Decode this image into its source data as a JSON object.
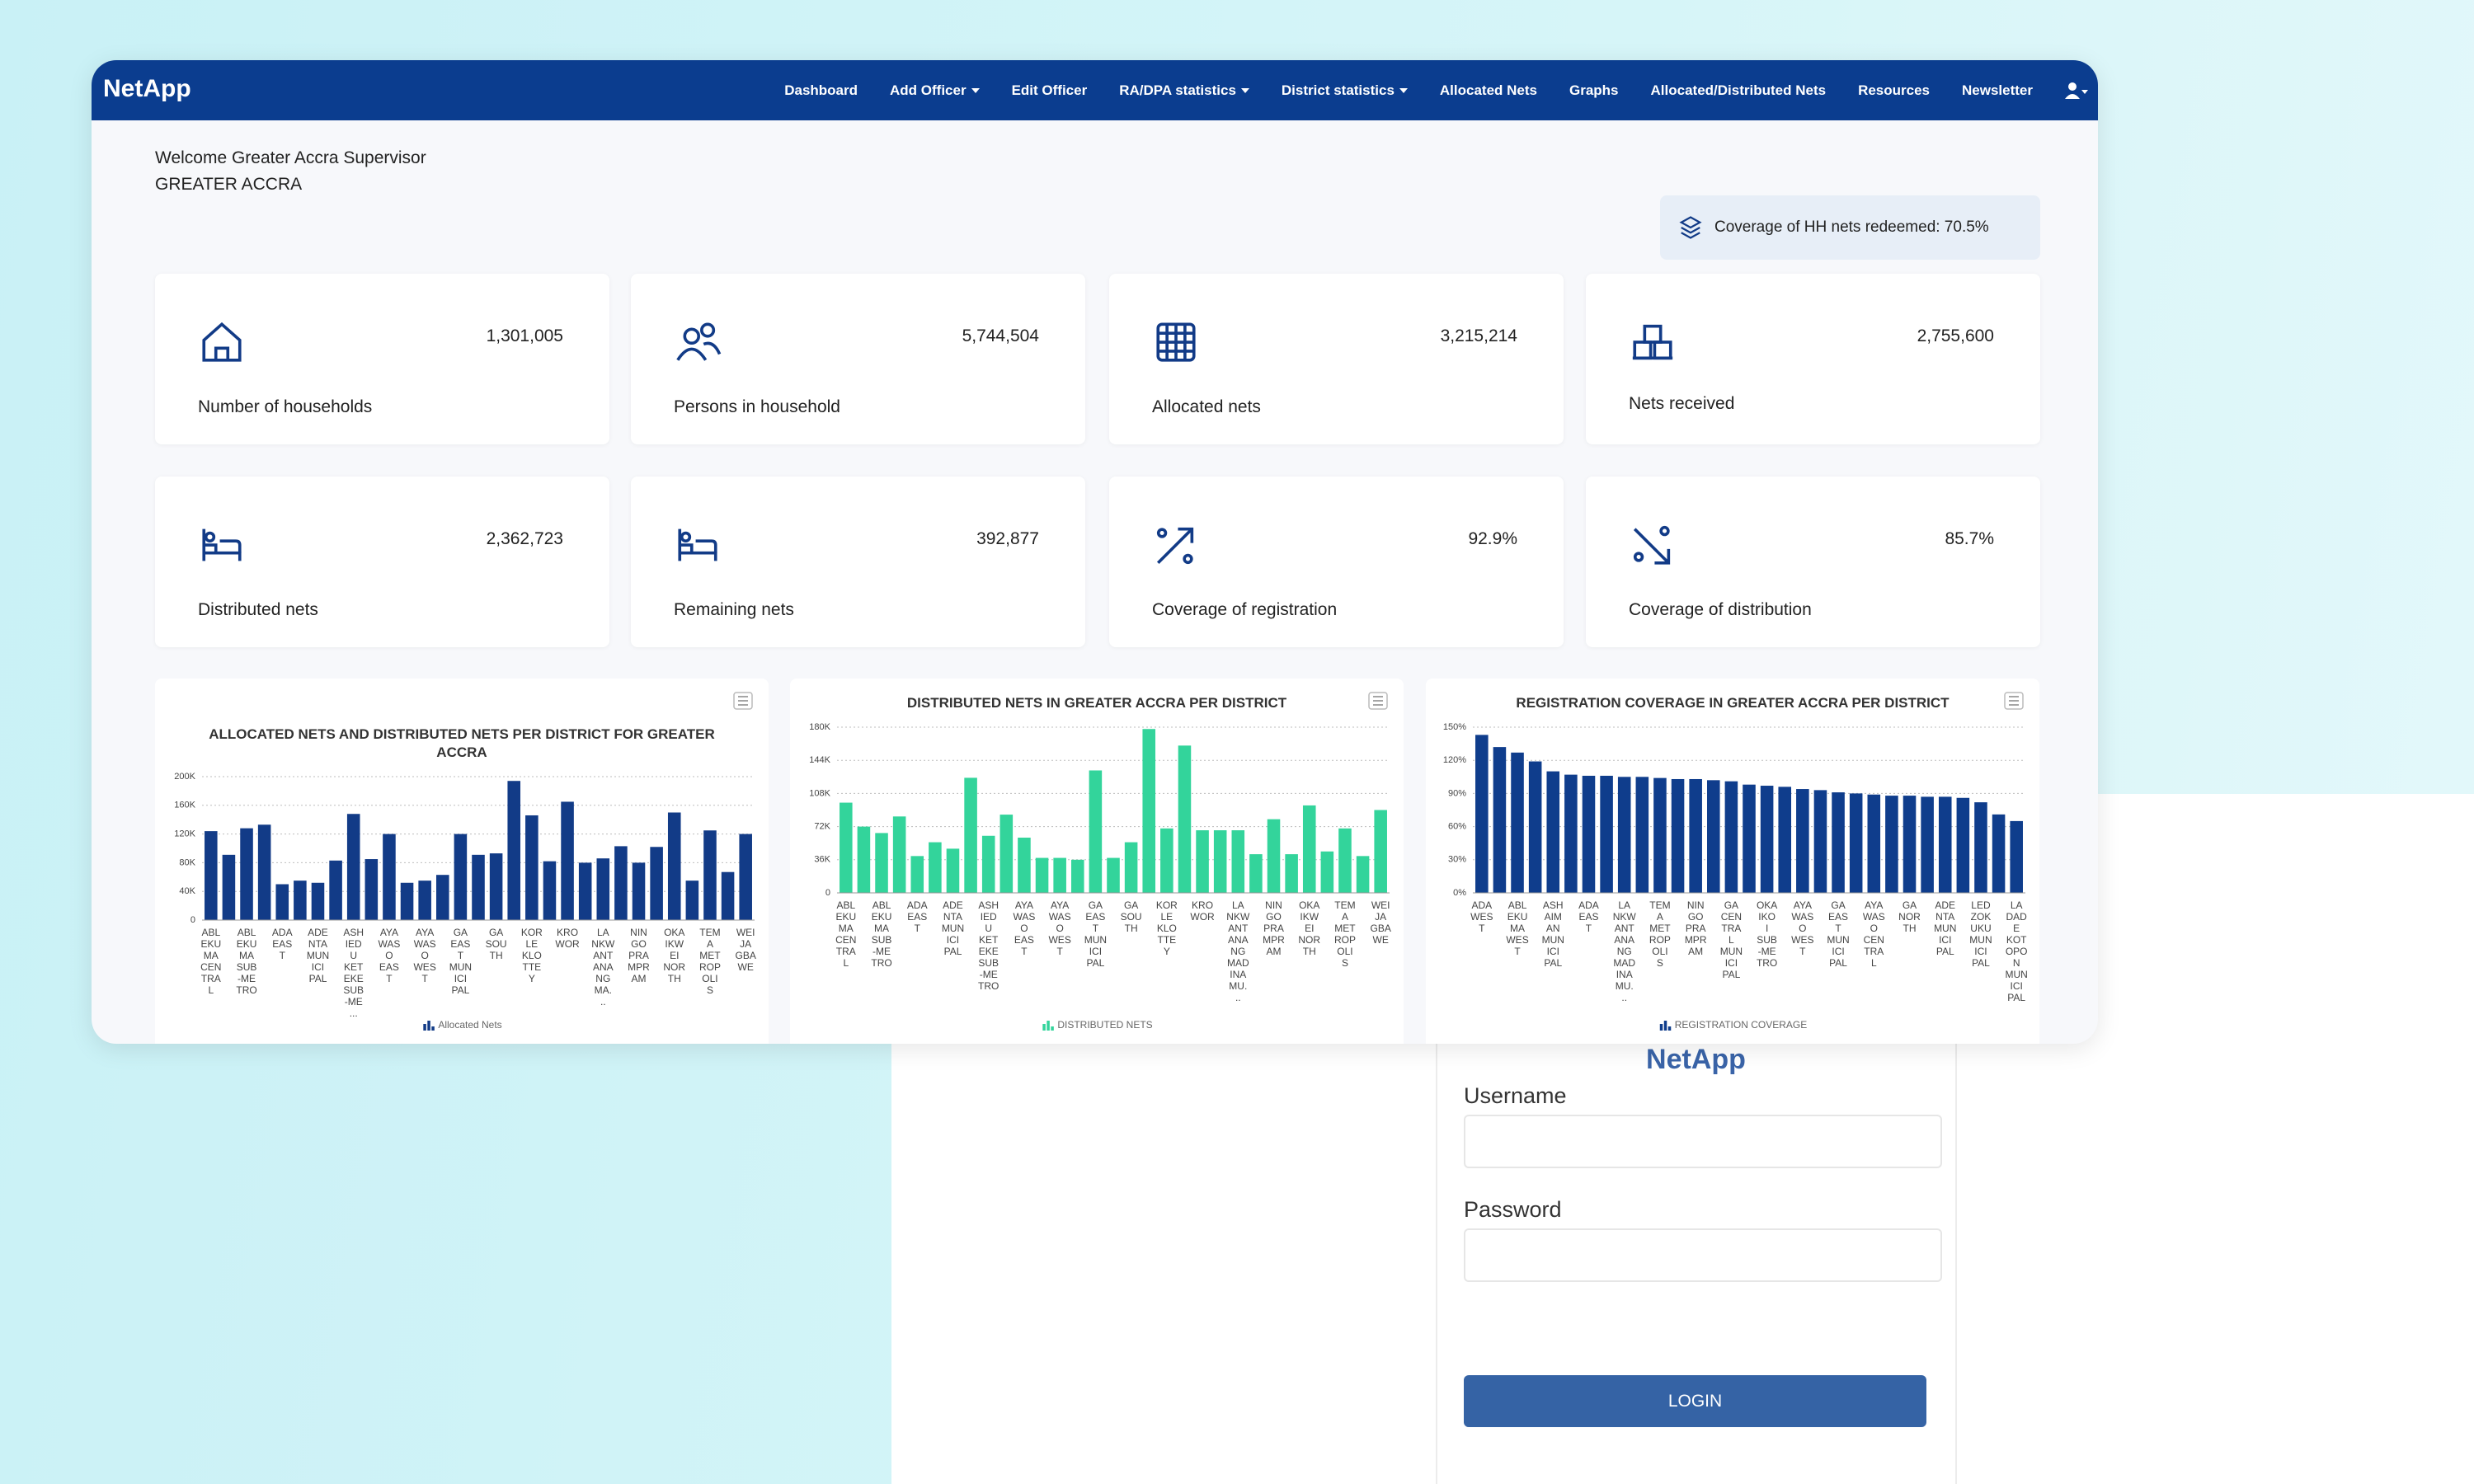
{
  "nav": {
    "brand": "NetApp",
    "items": [
      "Dashboard",
      "Add Officer",
      "Edit Officer",
      "RA/DPA statistics",
      "District statistics",
      "Allocated Nets",
      "Graphs",
      "Allocated/Distributed Nets",
      "Resources",
      "Newsletter"
    ]
  },
  "welcome": {
    "greeting": "Welcome Greater Accra Supervisor",
    "region": "GREATER ACCRA"
  },
  "coverage_badge": "Coverage of HH nets redeemed: 70.5%",
  "cards": [
    {
      "label": "Number of households",
      "value": "1,301,005"
    },
    {
      "label": "Persons in household",
      "value": "5,744,504"
    },
    {
      "label": "Allocated nets",
      "value": "3,215,214"
    },
    {
      "label": "Nets received",
      "value": "2,755,600"
    },
    {
      "label": "Distributed nets",
      "value": "2,362,723"
    },
    {
      "label": "Remaining nets",
      "value": "392,877"
    },
    {
      "label": "Coverage of registration",
      "value": "92.9%"
    },
    {
      "label": "Coverage of distribution",
      "value": "85.7%"
    }
  ],
  "chart_data": [
    {
      "type": "bar",
      "title": "ALLOCATED NETS AND DISTRIBUTED NETS PER DISTRICT FOR GREATER ACCRA",
      "categories": [
        "ABLEKUMA CENTRAL",
        null,
        "ABLEKUMA SUB-METRO",
        null,
        "ADA EAST",
        null,
        "ADENTA MUNICIPAL",
        null,
        "ASHIEDU KETEKE SUB-ME...",
        null,
        "AYAWASO EAST",
        null,
        "AYAWASO WEST",
        null,
        "GA EAST MUNICIPAL",
        null,
        "GA SOUTH",
        null,
        "KORLE KLOTTEY",
        null,
        "KROWOR",
        null,
        "LA NKWANTANANG MA...",
        null,
        "NINGO PRAMPRAM",
        null,
        "OKAIKWEI NORTH",
        null,
        "TEMA METROPOLIS",
        null,
        "WEIJA GBAWE"
      ],
      "values": [
        124000,
        91000,
        128000,
        133000,
        50000,
        55000,
        52000,
        83000,
        148000,
        85000,
        120000,
        52000,
        55000,
        63000,
        120000,
        91000,
        93000,
        194000,
        146000,
        82000,
        165000,
        80000,
        86000,
        103000,
        80000,
        102000,
        150000,
        55000,
        125000,
        67000,
        120000
      ],
      "color": "#123b87",
      "legend": "Allocated Nets",
      "ylim": [
        0,
        200000
      ],
      "yticks": [
        0,
        {
          "value": 40000,
          "label": "40K"
        },
        {
          "value": 80000,
          "label": "80K"
        },
        {
          "value": 120000,
          "label": "120K"
        },
        {
          "value": 160000,
          "label": "160K"
        },
        {
          "value": 200000,
          "label": "200K"
        }
      ],
      "grid": true
    },
    {
      "type": "bar",
      "title": "DISTRIBUTED NETS IN GREATER ACCRA PER DISTRICT",
      "categories": [
        "ABLEKUMA CENTRAL",
        null,
        "ABLEKUMA SUB-METRO",
        null,
        "ADA EAST",
        null,
        "ADENTA MUNICIPAL",
        null,
        "ASHIEDU KETEKE SUB-METRO",
        null,
        "AYAWASO EAST",
        null,
        "AYAWASO WEST",
        null,
        "GA EAST MUNICIPAL",
        null,
        "GA SOUTH",
        null,
        "KORLE KLOTTEY",
        null,
        "KROWOR",
        null,
        "LA NKWANTANANG MADINA MU...",
        null,
        "NINGO PRAMPRAM",
        null,
        "OKAIKWEI NORTH",
        null,
        "TEMA METROPOLIS",
        null,
        "WEIJA GBAWE"
      ],
      "values": [
        98000,
        72000,
        65000,
        83000,
        40000,
        55000,
        48000,
        125000,
        62000,
        85000,
        60000,
        38000,
        38000,
        36000,
        133000,
        38000,
        55000,
        178000,
        70000,
        160000,
        68000,
        68000,
        68000,
        42000,
        80000,
        42000,
        95000,
        45000,
        70000,
        40000,
        90000
      ],
      "color": "#33d49b",
      "legend": "DISTRIBUTED NETS",
      "ylim": [
        0,
        180000
      ],
      "yticks": [
        0,
        {
          "value": 36000,
          "label": "36K"
        },
        {
          "value": 72000,
          "label": "72K"
        },
        {
          "value": 108000,
          "label": "108K"
        },
        {
          "value": 144000,
          "label": "144K"
        },
        {
          "value": 180000,
          "label": "180K"
        }
      ],
      "grid": true
    },
    {
      "type": "bar",
      "title": "REGISTRATION COVERAGE IN GREATER ACCRA PER DISTRICT",
      "categories": [
        "ADA WEST",
        null,
        "ABLEKUMA WEST",
        null,
        "ASHAIMAN MUNICIPAL",
        null,
        "ADA EAST",
        null,
        "LA NKWANTANANG MADINA MU...",
        null,
        "TEMA METROPOLIS",
        null,
        "NINGO PRAMPRAM",
        null,
        "GA CENTRAL MUNICIPAL",
        null,
        "OKAIKOI SUB-METRO",
        null,
        "AYAWASO WEST",
        null,
        "GA EAST MUNICIPAL",
        null,
        "AYAWASO CENTRAL",
        null,
        "GA NORTH",
        null,
        "ADENTA MUNICIPAL",
        null,
        "LEDZOKUKU MUNICIPAL",
        null,
        "LA DADE KOTOPON MUNICIPAL"
      ],
      "values": [
        143,
        132,
        127,
        119,
        110,
        107,
        106,
        106,
        105,
        105,
        104,
        103,
        103,
        102,
        101,
        98,
        97,
        96,
        94,
        93,
        91,
        90,
        89,
        88,
        88,
        87,
        87,
        86,
        82,
        71,
        65
      ],
      "color": "#0f3d8c",
      "legend": "REGISTRATION COVERAGE",
      "ylim": [
        0,
        150
      ],
      "yticks": [
        {
          "value": 0,
          "label": "0%"
        },
        {
          "value": 30,
          "label": "30%"
        },
        {
          "value": 60,
          "label": "60%"
        },
        {
          "value": 90,
          "label": "90%"
        },
        {
          "value": 120,
          "label": "120%"
        },
        {
          "value": 150,
          "label": "150%"
        }
      ],
      "grid": true
    }
  ],
  "login": {
    "title": "NetApp",
    "username_label": "Username",
    "password_label": "Password",
    "button": "LOGIN"
  }
}
